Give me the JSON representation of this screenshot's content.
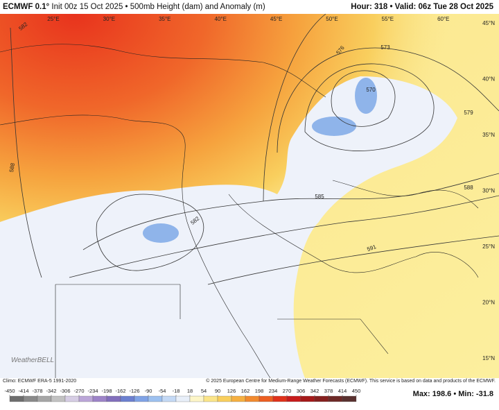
{
  "header": {
    "model": "ECMWF 0.1°",
    "description": "Init 00z 15 Oct 2025 • 500mb Height (dam) and Anomaly (m)",
    "valid": "Hour: 318 • Valid: 06z Tue 28 Oct 2025"
  },
  "map": {
    "longitude_labels": [
      "25°E",
      "30°E",
      "35°E",
      "40°E",
      "45°E",
      "50°E",
      "55°E",
      "60°E"
    ],
    "latitude_labels": [
      "45°N",
      "40°N",
      "35°N",
      "30°N",
      "25°N",
      "20°N",
      "15°N"
    ],
    "contour_labels": [
      "582",
      "588",
      "576",
      "573",
      "570",
      "579",
      "585",
      "588",
      "591",
      "582"
    ],
    "watermark": "WeatherBELL"
  },
  "footer": {
    "climo": "Climo: ECMWF ERA-5 1991-2020",
    "copyright": "© 2025 European Centre for Medium-Range Weather Forecasts (ECMWF). This service is based on data and products of the ECMWF.",
    "max_min": "Max: 198.6 • Min: -31.8"
  },
  "colorbar": {
    "ticks": [
      -450,
      -414,
      -378,
      -342,
      -306,
      -270,
      -234,
      -198,
      -162,
      -126,
      -90,
      -54,
      -18,
      18,
      54,
      90,
      126,
      162,
      198,
      234,
      270,
      306,
      342,
      378,
      414,
      450
    ],
    "colors": [
      "#6e6e6e",
      "#8a8a8a",
      "#a6a6a6",
      "#c2c2c2",
      "#d6cde4",
      "#bba6d8",
      "#9d84c8",
      "#826fbc",
      "#6c80d0",
      "#80a3e6",
      "#9dc1f0",
      "#c4d9f5",
      "#e8eff9",
      "#fdf6c8",
      "#fbe58a",
      "#f9cf5e",
      "#f6b041",
      "#f28b2f",
      "#ec5f22",
      "#e0321b",
      "#c71c1c",
      "#a51a1a",
      "#86201f",
      "#6e2a27",
      "#5a3230"
    ]
  }
}
